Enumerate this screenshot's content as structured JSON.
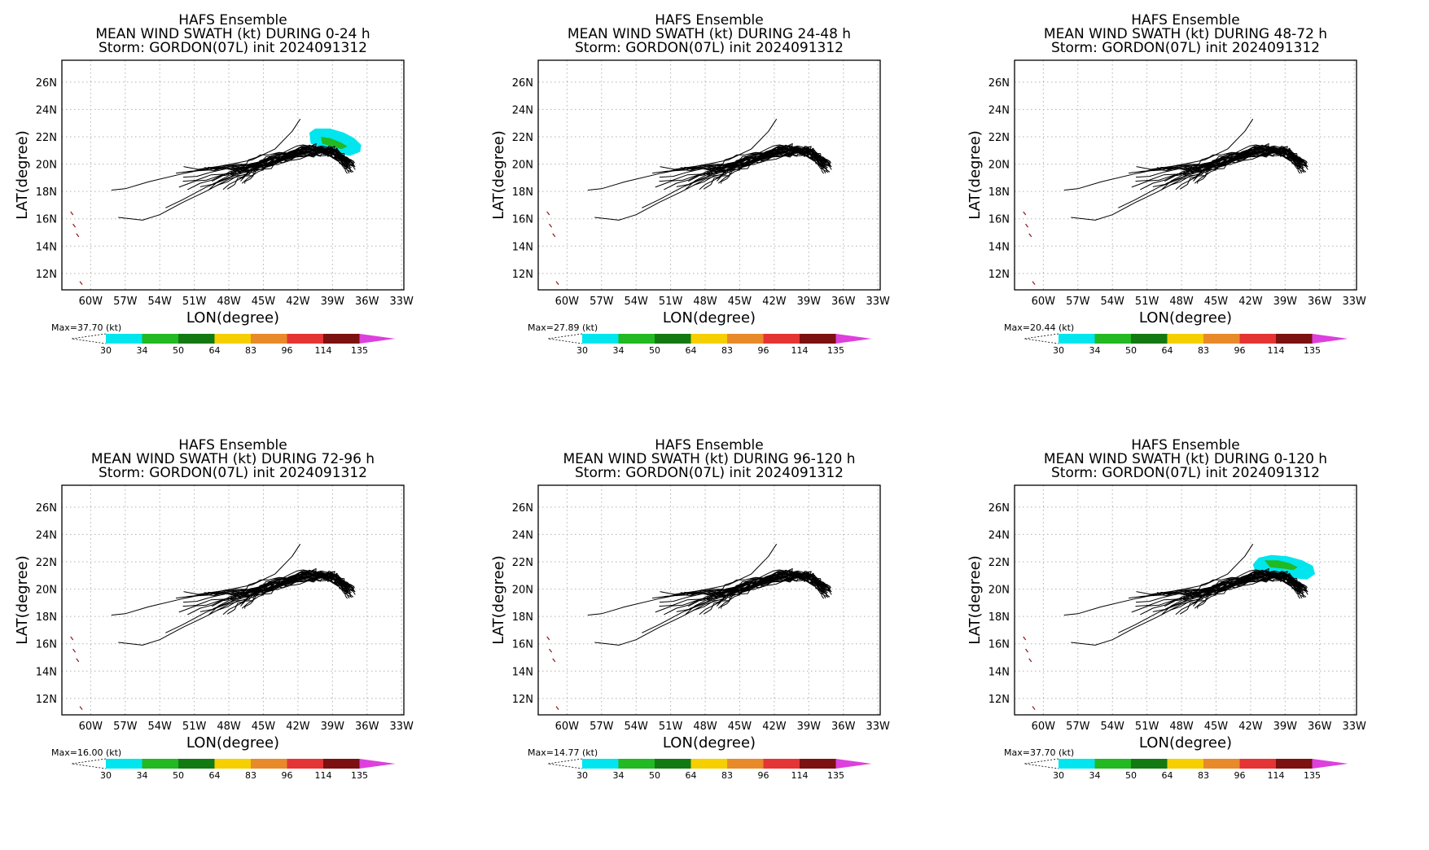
{
  "common": {
    "title_line1": "HAFS Ensemble",
    "title_line3": "Storm: GORDON(07L) init 2024091312",
    "xlabel": "LON(degree)",
    "ylabel": "LAT(degree)",
    "lon_ticks": [
      "60W",
      "57W",
      "54W",
      "51W",
      "48W",
      "45W",
      "42W",
      "39W",
      "36W",
      "33W"
    ],
    "lat_ticks": [
      "12N",
      "14N",
      "16N",
      "18N",
      "20N",
      "22N",
      "24N",
      "26N"
    ]
  },
  "colorbar": {
    "levels": [
      "30",
      "34",
      "50",
      "64",
      "83",
      "96",
      "114",
      "135"
    ],
    "colors": [
      "#00e5ee",
      "#22b922",
      "#137a13",
      "#f5cf00",
      "#e88a2a",
      "#e53434",
      "#7d1010",
      "#dd40dd"
    ]
  },
  "panels": [
    {
      "title_line2": "MEAN WIND SWATH (kt) DURING  0-24 h",
      "max_label": "Max=37.70 (kt)",
      "swath": "full",
      "swath_level": 34
    },
    {
      "title_line2": "MEAN WIND SWATH (kt) DURING 24-48 h",
      "max_label": "Max=27.89 (kt)",
      "swath": "none",
      "swath_level": 0
    },
    {
      "title_line2": "MEAN WIND SWATH (kt) DURING 48-72 h",
      "max_label": "Max=20.44 (kt)",
      "swath": "none",
      "swath_level": 0
    },
    {
      "title_line2": "MEAN WIND SWATH (kt) DURING 72-96 h",
      "max_label": "Max=16.00 (kt)",
      "swath": "none",
      "swath_level": 0
    },
    {
      "title_line2": "MEAN WIND SWATH (kt) DURING 96-120 h",
      "max_label": "Max=14.77 (kt)",
      "swath": "none",
      "swath_level": 0
    },
    {
      "title_line2": "MEAN WIND SWATH (kt) DURING 0-120 h",
      "max_label": "Max=37.70 (kt)",
      "swath": "full",
      "swath_level": 34
    }
  ]
}
